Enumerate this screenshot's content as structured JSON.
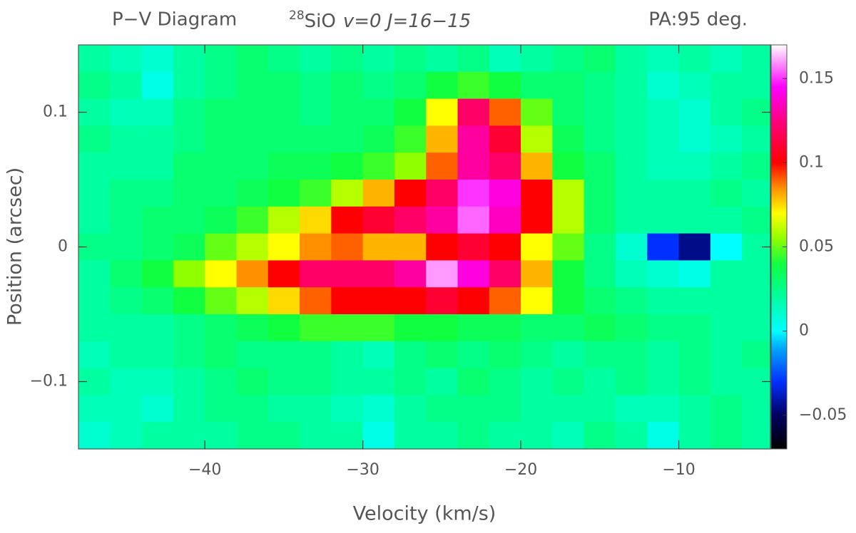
{
  "chart_data": {
    "type": "heatmap",
    "title_left": "P−V Diagram",
    "title_center": {
      "isotope": "28",
      "species": "SiO",
      "transition": "v=0 J=16−15"
    },
    "title_right": "PA:95 deg.",
    "x_label": "Velocity (km/s)",
    "y_label": "Position (arcsec)",
    "xlim": [
      -48,
      -4.2
    ],
    "ylim": [
      -0.15,
      0.15
    ],
    "xticks": [
      {
        "value": -40,
        "label": "−40"
      },
      {
        "value": -30,
        "label": "−30"
      },
      {
        "value": -20,
        "label": "−20"
      },
      {
        "value": -10,
        "label": "−10"
      }
    ],
    "yticks": [
      {
        "value": -0.1,
        "label": "−0.1"
      },
      0,
      0.1
    ],
    "clim": [
      -0.07,
      0.17
    ],
    "cticks": [
      {
        "value": -0.05,
        "label": "−0.05"
      },
      0,
      0.05,
      0.1,
      0.15
    ],
    "colorscale": [
      [
        -0.07,
        "#000000"
      ],
      [
        -0.05,
        "#000060"
      ],
      [
        -0.03,
        "#0030ff"
      ],
      [
        -0.01,
        "#00a8ff"
      ],
      [
        0,
        "#00ffff"
      ],
      [
        0.02,
        "#00ffa0"
      ],
      [
        0.04,
        "#10ff40"
      ],
      [
        0.055,
        "#90ff00"
      ],
      [
        0.07,
        "#ffff00"
      ],
      [
        0.085,
        "#ff9000"
      ],
      [
        0.1,
        "#ff0000"
      ],
      [
        0.125,
        "#ff0080"
      ],
      [
        0.145,
        "#ff00ff"
      ],
      [
        0.17,
        "#ffffff"
      ]
    ],
    "x": [
      -47,
      -45,
      -43,
      -41,
      -39,
      -37,
      -35,
      -33,
      -31,
      -29,
      -27,
      -25,
      -23,
      -21,
      -19,
      -17,
      -15,
      -13,
      -11,
      -9,
      -7,
      -5
    ],
    "y": [
      0.14,
      0.12,
      0.1,
      0.08,
      0.06,
      0.04,
      0.02,
      0,
      -0.02,
      -0.04,
      -0.06,
      -0.08,
      -0.1,
      -0.12,
      -0.14
    ],
    "z": [
      [
        0.02,
        0.015,
        0.01,
        0.02,
        0.025,
        0.03,
        0.025,
        0.02,
        0.025,
        0.02,
        0.025,
        0.02,
        0.025,
        0.015,
        0.02,
        0.025,
        0.03,
        0.02,
        0.015,
        0.02,
        0.015,
        0.02
      ],
      [
        0.025,
        0.02,
        0.005,
        0.02,
        0.025,
        0.03,
        0.03,
        0.025,
        0.03,
        0.025,
        0.03,
        0.04,
        0.045,
        0.04,
        0.03,
        0.03,
        0.025,
        0.02,
        0.01,
        0.015,
        0.02,
        0.02
      ],
      [
        0.02,
        0.015,
        0.015,
        0.025,
        0.03,
        0.03,
        0.03,
        0.025,
        0.03,
        0.03,
        0.04,
        0.07,
        0.12,
        0.09,
        0.05,
        0.03,
        0.025,
        0.02,
        0.015,
        0.01,
        0.02,
        0.025
      ],
      [
        0.025,
        0.02,
        0.02,
        0.025,
        0.03,
        0.03,
        0.03,
        0.03,
        0.03,
        0.035,
        0.045,
        0.08,
        0.13,
        0.11,
        0.06,
        0.035,
        0.025,
        0.02,
        0.015,
        0.01,
        0.015,
        0.02
      ],
      [
        0.02,
        0.02,
        0.02,
        0.03,
        0.03,
        0.03,
        0.035,
        0.035,
        0.04,
        0.045,
        0.055,
        0.09,
        0.13,
        0.12,
        0.08,
        0.04,
        0.03,
        0.02,
        0.015,
        0.015,
        0.02,
        0.025
      ],
      [
        0.02,
        0.025,
        0.025,
        0.03,
        0.03,
        0.035,
        0.04,
        0.045,
        0.06,
        0.08,
        0.1,
        0.12,
        0.15,
        0.14,
        0.1,
        0.06,
        0.03,
        0.02,
        0.02,
        0.02,
        0.025,
        0.02
      ],
      [
        0.02,
        0.025,
        0.03,
        0.03,
        0.035,
        0.045,
        0.06,
        0.075,
        0.1,
        0.11,
        0.12,
        0.13,
        0.155,
        0.135,
        0.1,
        0.06,
        0.03,
        0.02,
        0.02,
        0.02,
        0.02,
        0.025
      ],
      [
        0.025,
        0.025,
        0.03,
        0.035,
        0.05,
        0.06,
        0.07,
        0.085,
        0.09,
        0.08,
        0.08,
        0.1,
        0.11,
        0.1,
        0.07,
        0.05,
        0.025,
        0.01,
        -0.03,
        -0.045,
        0.0,
        0.02
      ],
      [
        0.02,
        0.03,
        0.04,
        0.055,
        0.07,
        0.085,
        0.1,
        0.12,
        0.12,
        0.12,
        0.13,
        0.16,
        0.14,
        0.12,
        0.08,
        0.04,
        0.025,
        0.015,
        0.01,
        0.005,
        0.02,
        0.02
      ],
      [
        0.02,
        0.025,
        0.03,
        0.04,
        0.05,
        0.06,
        0.075,
        0.09,
        0.1,
        0.1,
        0.1,
        0.11,
        0.1,
        0.09,
        0.07,
        0.04,
        0.03,
        0.025,
        0.02,
        0.02,
        0.02,
        0.02
      ],
      [
        0.02,
        0.02,
        0.02,
        0.025,
        0.03,
        0.035,
        0.04,
        0.045,
        0.045,
        0.045,
        0.04,
        0.04,
        0.035,
        0.035,
        0.03,
        0.03,
        0.035,
        0.03,
        0.025,
        0.025,
        0.02,
        0.02
      ],
      [
        0.015,
        0.02,
        0.02,
        0.025,
        0.03,
        0.025,
        0.025,
        0.025,
        0.02,
        0.015,
        0.025,
        0.03,
        0.025,
        0.03,
        0.025,
        0.02,
        0.025,
        0.025,
        0.02,
        0.025,
        0.02,
        0.025
      ],
      [
        0.02,
        0.015,
        0.015,
        0.02,
        0.025,
        0.03,
        0.025,
        0.025,
        0.02,
        0.02,
        0.025,
        0.02,
        0.03,
        0.025,
        0.02,
        0.025,
        0.02,
        0.025,
        0.02,
        0.025,
        0.02,
        0.02
      ],
      [
        0.015,
        0.015,
        0.01,
        0.02,
        0.025,
        0.025,
        0.02,
        0.02,
        0.015,
        0.01,
        0.02,
        0.025,
        0.025,
        0.025,
        0.02,
        0.02,
        0.02,
        0.015,
        0.015,
        0.02,
        0.025,
        0.02
      ],
      [
        0.01,
        0.015,
        0.02,
        0.02,
        0.02,
        0.025,
        0.025,
        0.02,
        0.02,
        0.005,
        0.02,
        0.02,
        0.025,
        0.02,
        0.02,
        0.015,
        0.025,
        0.02,
        0.005,
        0.02,
        0.025,
        0.02
      ]
    ]
  }
}
